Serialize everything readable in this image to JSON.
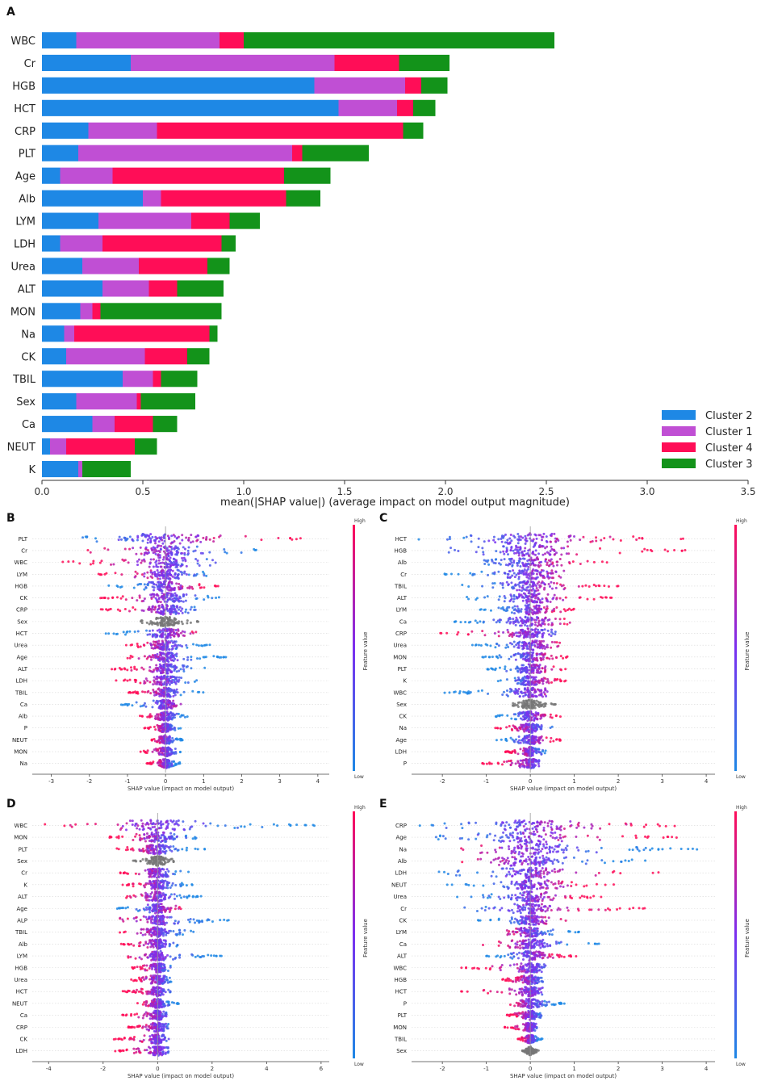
{
  "chart_data": [
    {
      "panel_label": "A",
      "type": "bar",
      "stacked": true,
      "orientation": "horizontal",
      "xlabel": "mean(|SHAP value|) (average impact on model output magnitude)",
      "xlim": [
        0,
        3.5
      ],
      "xticks": [
        "0.0",
        "0.5",
        "1.0",
        "1.5",
        "2.0",
        "2.5",
        "3.0",
        "3.5"
      ],
      "tick_values": [
        0,
        0.5,
        1.0,
        1.5,
        2.0,
        2.5,
        3.0,
        3.5
      ],
      "categories": [
        "WBC",
        "Cr",
        "HGB",
        "HCT",
        "CRP",
        "PLT",
        "Age",
        "Alb",
        "LYM",
        "LDH",
        "Urea",
        "ALT",
        "MON",
        "Na",
        "CK",
        "TBIL",
        "Sex",
        "Ca",
        "NEUT",
        "K"
      ],
      "series": [
        {
          "name": "Cluster 2",
          "color": "#1e88e5",
          "values": [
            0.17,
            0.44,
            1.35,
            1.47,
            0.23,
            0.18,
            0.09,
            0.5,
            0.28,
            0.09,
            0.2,
            0.3,
            0.19,
            0.11,
            0.12,
            0.4,
            0.17,
            0.25,
            0.04,
            0.18
          ]
        },
        {
          "name": "Cluster 1",
          "color": "#c04fd4",
          "values": [
            0.71,
            1.01,
            0.45,
            0.29,
            0.34,
            1.06,
            0.26,
            0.09,
            0.46,
            0.21,
            0.28,
            0.23,
            0.06,
            0.05,
            0.39,
            0.15,
            0.3,
            0.11,
            0.08,
            0.02
          ]
        },
        {
          "name": "Cluster 4",
          "color": "#ff0d57",
          "values": [
            0.12,
            0.32,
            0.08,
            0.08,
            1.22,
            0.05,
            0.85,
            0.62,
            0.19,
            0.59,
            0.34,
            0.14,
            0.04,
            0.67,
            0.21,
            0.04,
            0.02,
            0.19,
            0.34,
            0.0
          ]
        },
        {
          "name": "Cluster 3",
          "color": "#13931a",
          "values": [
            1.54,
            0.25,
            0.13,
            0.11,
            0.1,
            0.33,
            0.23,
            0.17,
            0.15,
            0.07,
            0.11,
            0.23,
            0.6,
            0.04,
            0.11,
            0.18,
            0.27,
            0.12,
            0.11,
            0.24
          ]
        }
      ]
    },
    {
      "panel_label": "B",
      "type": "scatter",
      "subtype": "shap-beeswarm",
      "xlabel": "SHAP value (impact on model output)",
      "colorbar_label": "Feature value",
      "colorbar_high": "High",
      "colorbar_low": "Low",
      "xlim": [
        -3.5,
        4.3
      ],
      "xticks": [
        -3,
        -2,
        -1,
        0,
        1,
        2,
        3,
        4
      ],
      "features": [
        {
          "name": "PLT",
          "min": -3.2,
          "max": 3.9,
          "spread": 1.5,
          "dir": 1
        },
        {
          "name": "Cr",
          "min": -2.1,
          "max": 3.3,
          "spread": 1.0,
          "dir": -1
        },
        {
          "name": "WBC",
          "min": -3.2,
          "max": 1.5,
          "spread": 0.9,
          "dir": -1
        },
        {
          "name": "LYM",
          "min": -1.9,
          "max": 1.4,
          "spread": 0.9,
          "dir": -1
        },
        {
          "name": "HGB",
          "min": -1.6,
          "max": 1.5,
          "spread": 0.8,
          "dir": 1
        },
        {
          "name": "CK",
          "min": -1.8,
          "max": 1.6,
          "spread": 0.8,
          "dir": -1
        },
        {
          "name": "CRP",
          "min": -1.7,
          "max": 1.0,
          "spread": 0.7,
          "dir": -1
        },
        {
          "name": "Sex",
          "min": -0.7,
          "max": 0.9,
          "spread": 0.5,
          "dir": 0
        },
        {
          "name": "HCT",
          "min": -1.6,
          "max": 0.8,
          "spread": 0.6,
          "dir": 1
        },
        {
          "name": "Urea",
          "min": -1.1,
          "max": 1.2,
          "spread": 0.6,
          "dir": -1
        },
        {
          "name": "Age",
          "min": -1.0,
          "max": 1.6,
          "spread": 0.6,
          "dir": -1
        },
        {
          "name": "ALT",
          "min": -1.5,
          "max": 1.2,
          "spread": 0.6,
          "dir": -1
        },
        {
          "name": "LDH",
          "min": -1.3,
          "max": 0.9,
          "spread": 0.5,
          "dir": -1
        },
        {
          "name": "TBIL",
          "min": -1.0,
          "max": 1.0,
          "spread": 0.5,
          "dir": -1
        },
        {
          "name": "Ca",
          "min": -1.3,
          "max": 0.5,
          "spread": 0.4,
          "dir": 1
        },
        {
          "name": "Alb",
          "min": -0.7,
          "max": 0.6,
          "spread": 0.4,
          "dir": -1
        },
        {
          "name": "P",
          "min": -0.6,
          "max": 0.4,
          "spread": 0.3,
          "dir": -1
        },
        {
          "name": "NEUT",
          "min": -0.4,
          "max": 0.5,
          "spread": 0.3,
          "dir": -1
        },
        {
          "name": "MON",
          "min": -0.7,
          "max": 0.4,
          "spread": 0.3,
          "dir": -1
        },
        {
          "name": "Na",
          "min": -0.5,
          "max": 0.4,
          "spread": 0.3,
          "dir": -1
        }
      ]
    },
    {
      "panel_label": "C",
      "type": "scatter",
      "subtype": "shap-beeswarm",
      "xlabel": "SHAP value (impact on model output)",
      "colorbar_label": "Feature value",
      "colorbar_high": "High",
      "colorbar_low": "Low",
      "xlim": [
        -2.7,
        4.2
      ],
      "xticks": [
        -2,
        -1,
        0,
        1,
        2,
        3,
        4
      ],
      "features": [
        {
          "name": "HCT",
          "min": -2.7,
          "max": 3.8,
          "spread": 1.5,
          "dir": 1
        },
        {
          "name": "HGB",
          "min": -2.1,
          "max": 3.6,
          "spread": 1.2,
          "dir": 1
        },
        {
          "name": "Alb",
          "min": -1.1,
          "max": 1.9,
          "spread": 1.0,
          "dir": 1
        },
        {
          "name": "Cr",
          "min": -2.1,
          "max": 1.3,
          "spread": 0.9,
          "dir": 1
        },
        {
          "name": "TBIL",
          "min": -1.6,
          "max": 2.0,
          "spread": 0.8,
          "dir": 1
        },
        {
          "name": "ALT",
          "min": -1.5,
          "max": 2.0,
          "spread": 0.8,
          "dir": 1
        },
        {
          "name": "LYM",
          "min": -1.2,
          "max": 1.0,
          "spread": 0.7,
          "dir": 1
        },
        {
          "name": "Ca",
          "min": -1.8,
          "max": 1.0,
          "spread": 0.7,
          "dir": 1
        },
        {
          "name": "CRP",
          "min": -2.2,
          "max": 0.6,
          "spread": 0.6,
          "dir": -1
        },
        {
          "name": "Urea",
          "min": -1.4,
          "max": 0.7,
          "spread": 0.6,
          "dir": 1
        },
        {
          "name": "MON",
          "min": -1.1,
          "max": 0.9,
          "spread": 0.6,
          "dir": 1
        },
        {
          "name": "PLT",
          "min": -1.1,
          "max": 0.8,
          "spread": 0.5,
          "dir": 1
        },
        {
          "name": "K",
          "min": -0.8,
          "max": 0.9,
          "spread": 0.5,
          "dir": 1
        },
        {
          "name": "WBC",
          "min": -2.0,
          "max": 0.4,
          "spread": 0.5,
          "dir": 1
        },
        {
          "name": "Sex",
          "min": -0.4,
          "max": 0.6,
          "spread": 0.4,
          "dir": 0
        },
        {
          "name": "CK",
          "min": -0.9,
          "max": 0.9,
          "spread": 0.5,
          "dir": 1
        },
        {
          "name": "Na",
          "min": -0.8,
          "max": 0.6,
          "spread": 0.4,
          "dir": -1
        },
        {
          "name": "Age",
          "min": -0.8,
          "max": 0.7,
          "spread": 0.4,
          "dir": 1
        },
        {
          "name": "LDH",
          "min": -0.6,
          "max": 0.4,
          "spread": 0.3,
          "dir": -1
        },
        {
          "name": "P",
          "min": -1.1,
          "max": 0.2,
          "spread": 0.3,
          "dir": -1
        }
      ]
    },
    {
      "panel_label": "D",
      "type": "scatter",
      "subtype": "shap-beeswarm",
      "xlabel": "SHAP value (impact on model output)",
      "colorbar_label": "Feature value",
      "colorbar_high": "High",
      "colorbar_low": "Low",
      "xlim": [
        -4.6,
        6.3
      ],
      "xticks": [
        -4,
        -2,
        0,
        2,
        4,
        6
      ],
      "features": [
        {
          "name": "WBC",
          "min": -4.3,
          "max": 5.8,
          "spread": 2.0,
          "dir": -1
        },
        {
          "name": "MON",
          "min": -1.8,
          "max": 2.0,
          "spread": 1.0,
          "dir": -1
        },
        {
          "name": "PLT",
          "min": -1.6,
          "max": 1.8,
          "spread": 0.8,
          "dir": -1
        },
        {
          "name": "Sex",
          "min": -0.9,
          "max": 0.6,
          "spread": 0.5,
          "dir": 0
        },
        {
          "name": "Cr",
          "min": -1.4,
          "max": 1.4,
          "spread": 0.7,
          "dir": -1
        },
        {
          "name": "K",
          "min": -1.3,
          "max": 1.3,
          "spread": 0.6,
          "dir": -1
        },
        {
          "name": "ALT",
          "min": -1.3,
          "max": 1.6,
          "spread": 0.6,
          "dir": -1
        },
        {
          "name": "Age",
          "min": -1.5,
          "max": 1.0,
          "spread": 0.6,
          "dir": 1
        },
        {
          "name": "ALP",
          "min": -1.4,
          "max": 2.8,
          "spread": 0.6,
          "dir": -1
        },
        {
          "name": "TBIL",
          "min": -1.4,
          "max": 1.8,
          "spread": 0.6,
          "dir": -1
        },
        {
          "name": "Alb",
          "min": -1.4,
          "max": 0.8,
          "spread": 0.5,
          "dir": -1
        },
        {
          "name": "LYM",
          "min": -1.1,
          "max": 2.4,
          "spread": 0.5,
          "dir": -1
        },
        {
          "name": "HGB",
          "min": -1.1,
          "max": 0.6,
          "spread": 0.4,
          "dir": -1
        },
        {
          "name": "Urea",
          "min": -1.2,
          "max": 0.5,
          "spread": 0.4,
          "dir": -1
        },
        {
          "name": "HCT",
          "min": -1.3,
          "max": 0.5,
          "spread": 0.4,
          "dir": -1
        },
        {
          "name": "NEUT",
          "min": -0.9,
          "max": 0.8,
          "spread": 0.4,
          "dir": -1
        },
        {
          "name": "Ca",
          "min": -1.3,
          "max": 0.5,
          "spread": 0.4,
          "dir": -1
        },
        {
          "name": "CRP",
          "min": -1.1,
          "max": 0.5,
          "spread": 0.4,
          "dir": -1
        },
        {
          "name": "CK",
          "min": -1.6,
          "max": 0.5,
          "spread": 0.4,
          "dir": -1
        },
        {
          "name": "LDH",
          "min": -1.6,
          "max": 0.4,
          "spread": 0.4,
          "dir": -1
        }
      ]
    },
    {
      "panel_label": "E",
      "type": "scatter",
      "subtype": "shap-beeswarm",
      "xlabel": "SHAP value (impact on model output)",
      "colorbar_label": "Feature value",
      "colorbar_high": "High",
      "colorbar_low": "Low",
      "xlim": [
        -2.7,
        4.2
      ],
      "xticks": [
        -2,
        -1,
        0,
        1,
        2,
        3,
        4
      ],
      "features": [
        {
          "name": "CRP",
          "min": -2.6,
          "max": 3.8,
          "spread": 1.5,
          "dir": 1
        },
        {
          "name": "Age",
          "min": -2.2,
          "max": 3.4,
          "spread": 1.3,
          "dir": 1
        },
        {
          "name": "Na",
          "min": -1.7,
          "max": 3.8,
          "spread": 1.2,
          "dir": -1
        },
        {
          "name": "Alb",
          "min": -1.6,
          "max": 3.1,
          "spread": 1.1,
          "dir": -1
        },
        {
          "name": "LDH",
          "min": -2.1,
          "max": 3.1,
          "spread": 1.0,
          "dir": 1
        },
        {
          "name": "NEUT",
          "min": -2.0,
          "max": 2.0,
          "spread": 0.9,
          "dir": 1
        },
        {
          "name": "Urea",
          "min": -1.8,
          "max": 1.7,
          "spread": 0.8,
          "dir": 1
        },
        {
          "name": "Cr",
          "min": -1.8,
          "max": 2.6,
          "spread": 0.8,
          "dir": 1
        },
        {
          "name": "CK",
          "min": -1.2,
          "max": 1.0,
          "spread": 0.6,
          "dir": 1
        },
        {
          "name": "LYM",
          "min": -0.6,
          "max": 1.2,
          "spread": 0.5,
          "dir": -1
        },
        {
          "name": "Ca",
          "min": -1.1,
          "max": 1.6,
          "spread": 0.6,
          "dir": -1
        },
        {
          "name": "ALT",
          "min": -1.0,
          "max": 1.1,
          "spread": 0.5,
          "dir": 1
        },
        {
          "name": "WBC",
          "min": -1.6,
          "max": 0.4,
          "spread": 0.4,
          "dir": -1
        },
        {
          "name": "HGB",
          "min": -0.7,
          "max": 0.3,
          "spread": 0.3,
          "dir": -1
        },
        {
          "name": "HCT",
          "min": -1.6,
          "max": 0.3,
          "spread": 0.3,
          "dir": -1
        },
        {
          "name": "P",
          "min": -0.5,
          "max": 0.8,
          "spread": 0.4,
          "dir": -1
        },
        {
          "name": "PLT",
          "min": -0.6,
          "max": 0.3,
          "spread": 0.3,
          "dir": -1
        },
        {
          "name": "MON",
          "min": -0.6,
          "max": 0.2,
          "spread": 0.2,
          "dir": -1
        },
        {
          "name": "TBIL",
          "min": -0.3,
          "max": 0.3,
          "spread": 0.2,
          "dir": -1
        },
        {
          "name": "Sex",
          "min": -0.2,
          "max": 0.2,
          "spread": 0.15,
          "dir": 0
        }
      ]
    }
  ]
}
